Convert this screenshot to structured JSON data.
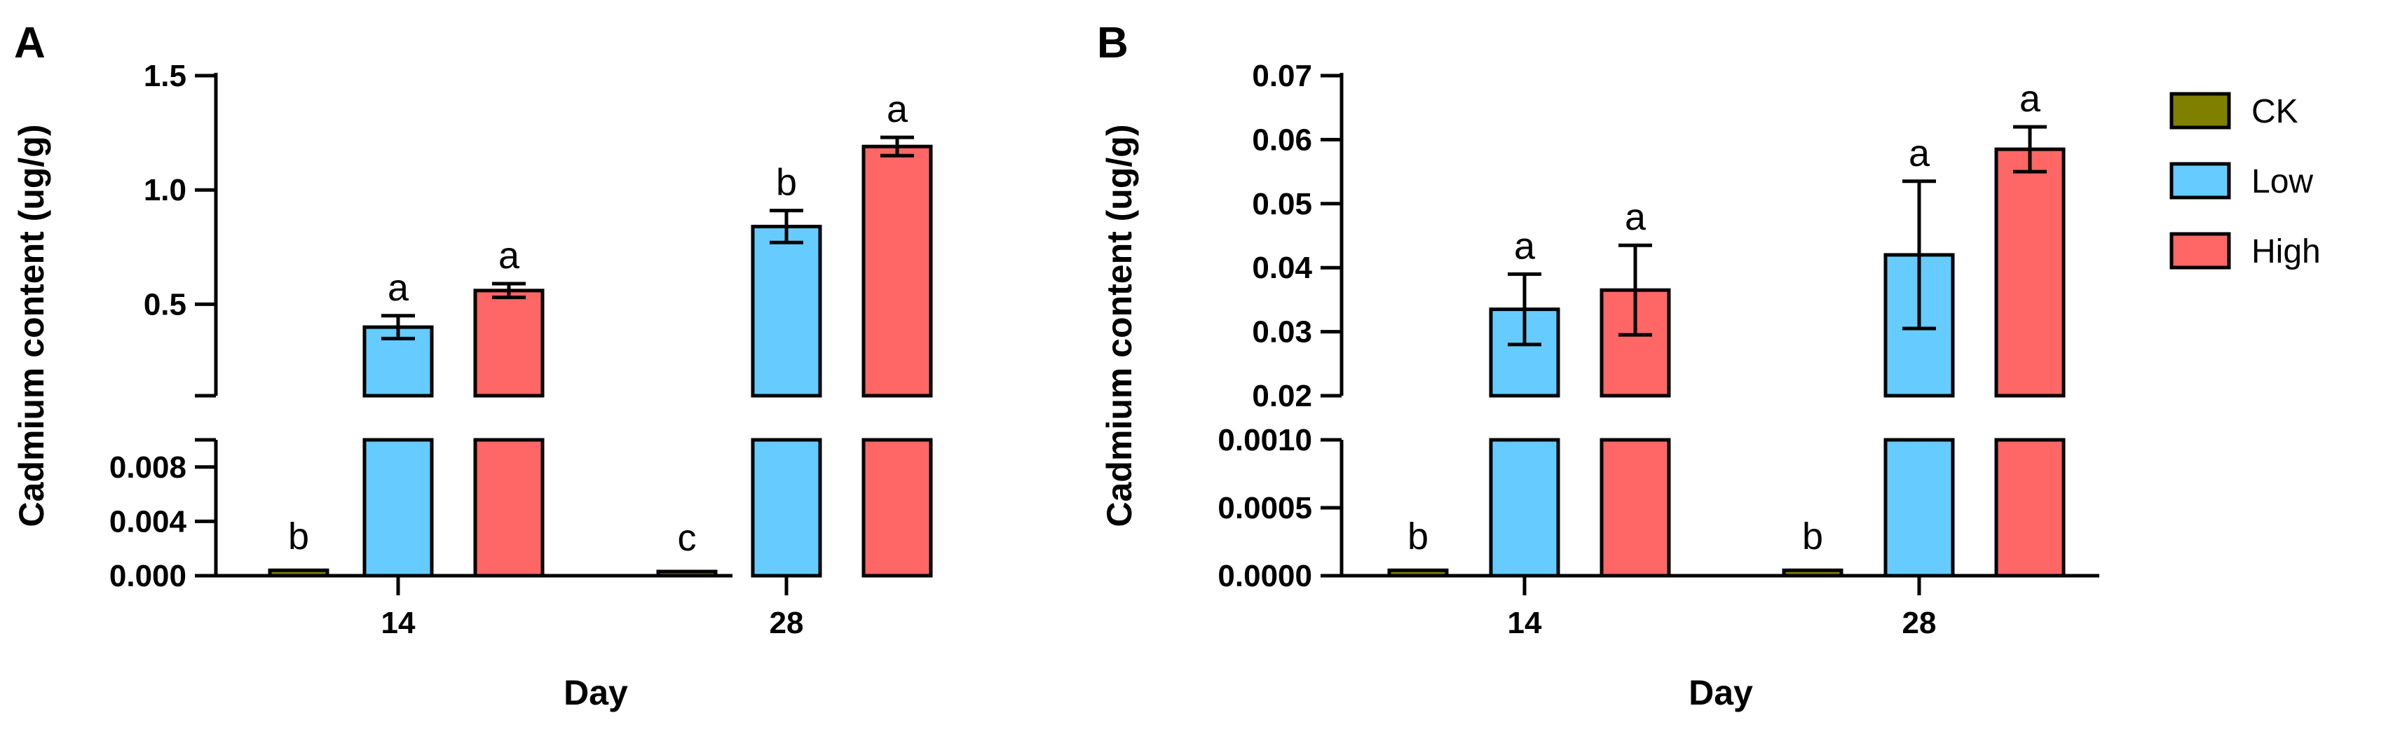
{
  "colors": {
    "CK": "#808000",
    "Low": "#66ccff",
    "High": "#ff6666"
  },
  "legend": [
    {
      "key": "CK",
      "label": "CK",
      "color": "#808000"
    },
    {
      "key": "Low",
      "label": "Low",
      "color": "#66ccff"
    },
    {
      "key": "High",
      "label": "High",
      "color": "#ff6666"
    }
  ],
  "chart_data": [
    {
      "panel": "A",
      "type": "bar",
      "xlabel": "Day",
      "ylabel": "Cadmium content (ug/g)",
      "categories": [
        "14",
        "28"
      ],
      "y_axis_broken": true,
      "lower_segment": {
        "ylim": [
          0,
          0.01
        ],
        "ticks": [
          "0.000",
          "0.004",
          "0.008"
        ]
      },
      "upper_segment": {
        "ylim": [
          0.1,
          1.5
        ],
        "ticks": [
          "0.5",
          "1.0",
          "1.5"
        ]
      },
      "series": [
        {
          "name": "CK",
          "values": [
            0.0004,
            0.0003
          ],
          "errors": [
            0,
            0
          ],
          "letters": [
            "b",
            "c"
          ]
        },
        {
          "name": "Low",
          "values": [
            0.4,
            0.84
          ],
          "errors": [
            0.05,
            0.07
          ],
          "letters": [
            "a",
            "b"
          ]
        },
        {
          "name": "High",
          "values": [
            0.56,
            1.19
          ],
          "errors": [
            0.03,
            0.04
          ],
          "letters": [
            "a",
            "a"
          ]
        }
      ]
    },
    {
      "panel": "B",
      "type": "bar",
      "xlabel": "Day",
      "ylabel": "Cadmium content (ug/g)",
      "categories": [
        "14",
        "28"
      ],
      "y_axis_broken": true,
      "lower_segment": {
        "ylim": [
          0,
          0.001
        ],
        "ticks": [
          "0.0000",
          "0.0005",
          "0.0010"
        ]
      },
      "upper_segment": {
        "ylim": [
          0.02,
          0.07
        ],
        "ticks": [
          "0.02",
          "0.03",
          "0.04",
          "0.05",
          "0.06",
          "0.07"
        ]
      },
      "series": [
        {
          "name": "CK",
          "values": [
            4e-05,
            4e-05
          ],
          "errors": [
            0,
            0
          ],
          "letters": [
            "b",
            "b"
          ]
        },
        {
          "name": "Low",
          "values": [
            0.0335,
            0.042
          ],
          "errors": [
            0.0055,
            0.0115
          ],
          "letters": [
            "a",
            "a"
          ]
        },
        {
          "name": "High",
          "values": [
            0.0365,
            0.0585
          ],
          "errors": [
            0.007,
            0.0035
          ],
          "letters": [
            "a",
            "a"
          ]
        }
      ]
    }
  ]
}
